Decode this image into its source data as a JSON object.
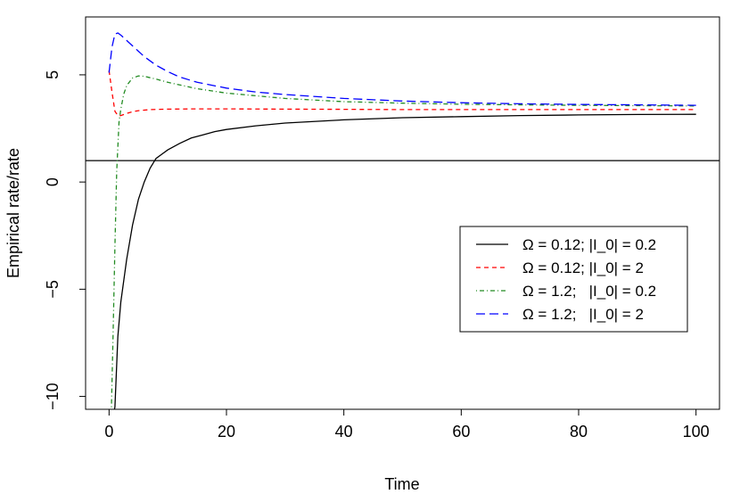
{
  "chart_data": {
    "type": "line",
    "xlabel": "Time",
    "ylabel": "Empirical rate/rate",
    "xlim": [
      -4,
      104
    ],
    "ylim": [
      -10.6,
      7.7
    ],
    "xticks": [
      0,
      20,
      40,
      60,
      80,
      100
    ],
    "yticks": [
      -10,
      -5,
      0,
      5
    ],
    "hline": 1,
    "legend_position": "right",
    "series": [
      {
        "name": "Ω = 0.12; |I_0| = 0.2",
        "color": "#000000",
        "dash": "solid",
        "x": [
          0.6,
          1,
          1.5,
          2,
          3,
          4,
          5,
          6,
          7,
          8,
          9,
          10,
          12,
          14,
          16,
          18,
          20,
          25,
          30,
          40,
          50,
          60,
          70,
          80,
          90,
          100
        ],
        "y": [
          -11,
          -10.5,
          -7.2,
          -5.6,
          -3.6,
          -2.0,
          -0.8,
          0.0,
          0.65,
          1.1,
          1.3,
          1.5,
          1.8,
          2.05,
          2.2,
          2.35,
          2.45,
          2.62,
          2.75,
          2.9,
          3.0,
          3.05,
          3.1,
          3.13,
          3.15,
          3.16
        ]
      },
      {
        "name": "Ω = 0.12; |I_0| = 2",
        "color": "#ff0000",
        "dash": "dashed",
        "x": [
          0,
          0.5,
          1,
          1.5,
          2,
          3,
          4,
          5,
          7,
          10,
          15,
          20,
          30,
          40,
          50,
          60,
          70,
          80,
          90,
          100
        ],
        "y": [
          5.2,
          4.2,
          3.3,
          3.1,
          3.1,
          3.2,
          3.28,
          3.33,
          3.38,
          3.4,
          3.41,
          3.41,
          3.4,
          3.39,
          3.38,
          3.38,
          3.38,
          3.38,
          3.38,
          3.38
        ]
      },
      {
        "name": "Ω = 1.2;   |I_0| = 0.2",
        "color": "#228b22",
        "dash": "dashdot",
        "x": [
          0.4,
          0.7,
          1,
          1.3,
          1.7,
          2,
          2.5,
          3,
          4,
          5,
          6,
          8,
          10,
          15,
          20,
          30,
          40,
          50,
          60,
          70,
          80,
          90,
          100
        ],
        "y": [
          -10.5,
          -7,
          -3,
          0.5,
          2.8,
          3.4,
          4.1,
          4.5,
          4.85,
          4.95,
          4.93,
          4.8,
          4.65,
          4.35,
          4.15,
          3.9,
          3.75,
          3.68,
          3.63,
          3.6,
          3.58,
          3.56,
          3.55
        ]
      },
      {
        "name": "Ω = 1.2;   |I_0| = 2",
        "color": "#0000ff",
        "dash": "longdash",
        "x": [
          0,
          0.5,
          1,
          1.5,
          2,
          3,
          4,
          5,
          6,
          8,
          10,
          12,
          15,
          20,
          25,
          30,
          40,
          50,
          60,
          70,
          80,
          90,
          100
        ],
        "y": [
          5.1,
          6.3,
          6.9,
          6.95,
          6.85,
          6.6,
          6.35,
          6.1,
          5.85,
          5.45,
          5.15,
          4.9,
          4.65,
          4.38,
          4.2,
          4.08,
          3.9,
          3.78,
          3.7,
          3.65,
          3.62,
          3.6,
          3.58
        ]
      }
    ]
  }
}
